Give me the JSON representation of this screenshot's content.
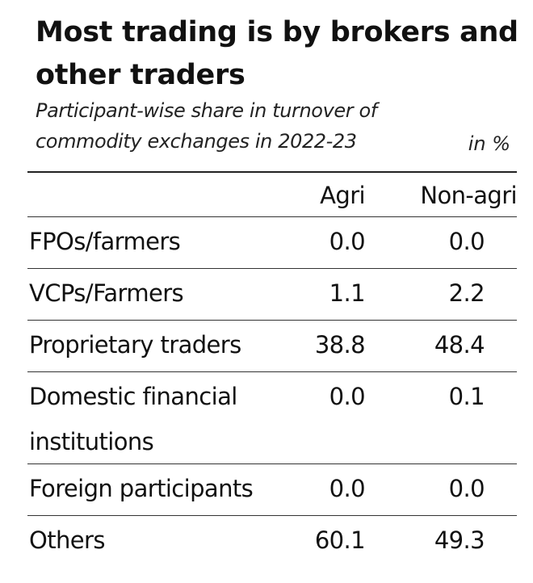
{
  "header": {
    "title": "Most trading is by brokers and other traders",
    "subtitle": "Participant-wise share in turnover of commodity exchanges in 2022-23",
    "unit": "in %"
  },
  "chart_data": {
    "type": "table",
    "title": "Most trading is by brokers and other traders",
    "subtitle": "Participant-wise share in turnover of commodity exchanges in 2022-23",
    "unit": "in %",
    "columns": [
      "",
      "Agri",
      "Non-agri"
    ],
    "rows": [
      {
        "label": "FPOs/farmers",
        "agri": "0.0",
        "nonagri": "0.0"
      },
      {
        "label": "VCPs/Farmers",
        "agri": "1.1",
        "nonagri": "2.2"
      },
      {
        "label": "Proprietary traders",
        "agri": "38.8",
        "nonagri": "48.4"
      },
      {
        "label": "Domestic financial institutions",
        "agri": "0.0",
        "nonagri": "0.1"
      },
      {
        "label": "Foreign participants",
        "agri": "0.0",
        "nonagri": "0.0"
      },
      {
        "label": "Others",
        "agri": "60.1",
        "nonagri": "49.3"
      }
    ]
  }
}
